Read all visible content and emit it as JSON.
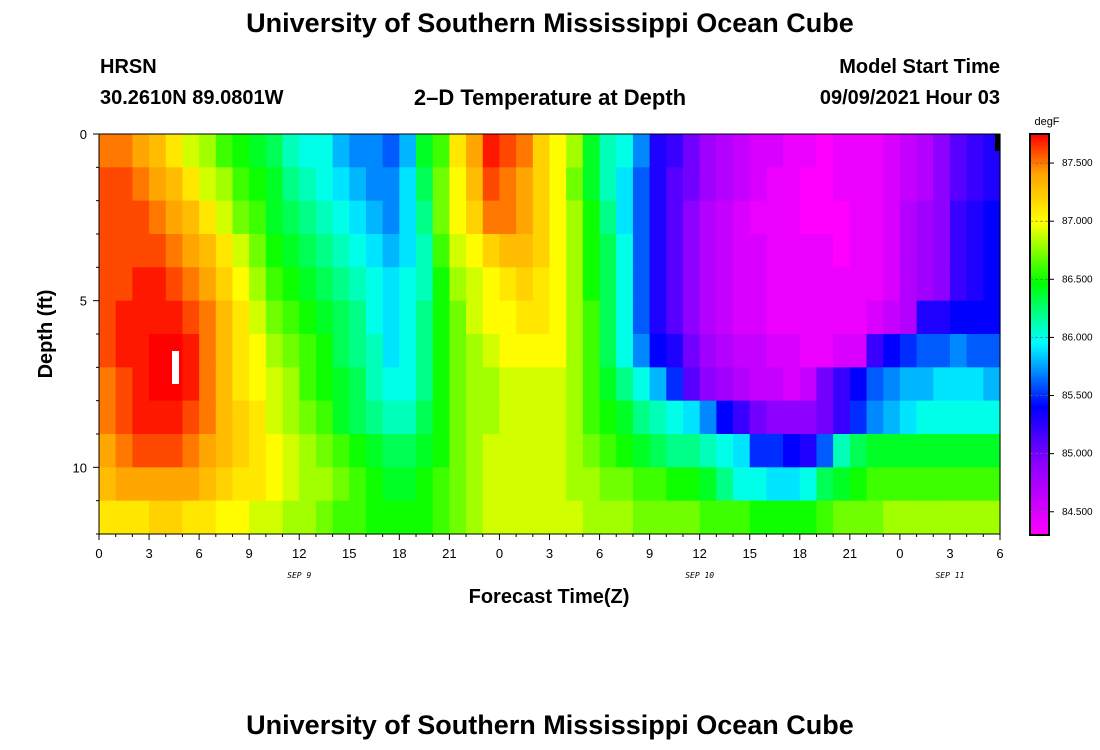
{
  "page": {
    "title_top": "University of Southern Mississippi Ocean Cube",
    "title_bottom": "University of Southern Mississippi Ocean Cube",
    "station": "HRSN",
    "location": "30.2610N  89.0801W",
    "plot_title": "2–D Temperature at Depth",
    "model_start_label": "Model Start Time",
    "model_start_value": "09/09/2021 Hour 03"
  },
  "chart_data": {
    "type": "heatmap",
    "title": "2–D Temperature at Depth",
    "xlabel": "Forecast Time(Z)",
    "ylabel": "Depth (ft)",
    "x_hours": [
      0,
      54
    ],
    "y_depth_ft": [
      0,
      12
    ],
    "x_tick_labels": [
      "0",
      "3",
      "6",
      "9",
      "12",
      "15",
      "18",
      "21",
      "0",
      "3",
      "6",
      "9",
      "12",
      "15",
      "18",
      "21",
      "0",
      "3",
      "6"
    ],
    "y_tick_labels": [
      "0",
      "5",
      "10"
    ],
    "date_labels": [
      {
        "label": "SEP 9",
        "hour": 12
      },
      {
        "label": "SEP 10",
        "hour": 36
      },
      {
        "label": "SEP 11",
        "hour": 51
      }
    ],
    "colorbar": {
      "unit": "degF",
      "range": [
        84.3,
        87.75
      ],
      "tick_labels": [
        "84.500",
        "85.000",
        "85.500",
        "86.000",
        "86.500",
        "87.000",
        "87.500"
      ],
      "tick_values": [
        84.5,
        85.0,
        85.5,
        86.0,
        86.5,
        87.0,
        87.5
      ]
    },
    "hours": [
      0,
      1,
      2,
      3,
      4,
      5,
      6,
      7,
      8,
      9,
      10,
      11,
      12,
      13,
      14,
      15,
      16,
      17,
      18,
      19,
      20,
      21,
      22,
      23,
      24,
      25,
      26,
      27,
      28,
      29,
      30,
      31,
      32,
      33,
      34,
      35,
      36,
      37,
      38,
      39,
      40,
      41,
      42,
      43,
      44,
      45,
      46,
      47,
      48,
      49,
      50,
      51,
      52,
      53
    ],
    "depths_ft": [
      0.5,
      1.5,
      2.5,
      3.5,
      4.5,
      5.5,
      6.5,
      7.5,
      8.5,
      9.5,
      10.5,
      11.5
    ],
    "model_start_hour": 3,
    "temperature_degF": [
      [
        87.5,
        87.5,
        87.4,
        87.3,
        87.1,
        86.9,
        86.8,
        86.6,
        86.5,
        86.4,
        86.3,
        86.1,
        86.0,
        86.0,
        85.8,
        85.7,
        85.7,
        85.6,
        85.8,
        86.4,
        86.6,
        87.1,
        87.4,
        87.7,
        87.6,
        87.5,
        87.2,
        87.0,
        86.8,
        86.4,
        86.1,
        86.0,
        85.7,
        85.3,
        85.2,
        85.0,
        84.8,
        84.7,
        84.6,
        84.5,
        84.5,
        84.4,
        84.4,
        84.3,
        84.4,
        84.4,
        84.4,
        84.5,
        84.6,
        84.7,
        84.9,
        85.1,
        85.2,
        85.3
      ],
      [
        87.6,
        87.6,
        87.5,
        87.4,
        87.3,
        87.1,
        86.9,
        86.8,
        86.6,
        86.5,
        86.4,
        86.2,
        86.1,
        86.0,
        85.9,
        85.8,
        85.7,
        85.7,
        85.9,
        86.3,
        86.7,
        87.0,
        87.3,
        87.6,
        87.5,
        87.4,
        87.2,
        87.0,
        86.7,
        86.4,
        86.1,
        85.9,
        85.6,
        85.3,
        85.1,
        85.0,
        84.8,
        84.7,
        84.6,
        84.5,
        84.4,
        84.4,
        84.3,
        84.3,
        84.4,
        84.4,
        84.4,
        84.5,
        84.6,
        84.7,
        84.9,
        85.1,
        85.2,
        85.3
      ],
      [
        87.6,
        87.6,
        87.6,
        87.5,
        87.4,
        87.3,
        87.1,
        86.9,
        86.7,
        86.6,
        86.4,
        86.3,
        86.2,
        86.1,
        86.0,
        85.9,
        85.8,
        85.7,
        85.9,
        86.2,
        86.7,
        87.0,
        87.2,
        87.5,
        87.5,
        87.4,
        87.2,
        87.0,
        86.8,
        86.5,
        86.2,
        85.9,
        85.6,
        85.3,
        85.1,
        84.9,
        84.7,
        84.6,
        84.5,
        84.4,
        84.4,
        84.4,
        84.3,
        84.3,
        84.3,
        84.4,
        84.4,
        84.5,
        84.7,
        84.8,
        84.9,
        85.2,
        85.3,
        85.4
      ],
      [
        87.6,
        87.6,
        87.6,
        87.6,
        87.5,
        87.4,
        87.3,
        87.1,
        86.9,
        86.7,
        86.5,
        86.4,
        86.3,
        86.2,
        86.1,
        86.0,
        85.9,
        85.8,
        85.9,
        86.1,
        86.6,
        86.9,
        87.0,
        87.2,
        87.3,
        87.3,
        87.2,
        87.0,
        86.8,
        86.5,
        86.3,
        86.0,
        85.6,
        85.3,
        85.1,
        84.9,
        84.7,
        84.6,
        84.5,
        84.5,
        84.4,
        84.4,
        84.4,
        84.4,
        84.3,
        84.4,
        84.4,
        84.5,
        84.7,
        84.8,
        84.9,
        85.2,
        85.3,
        85.4
      ],
      [
        87.6,
        87.6,
        87.7,
        87.7,
        87.6,
        87.5,
        87.4,
        87.2,
        87.0,
        86.8,
        86.6,
        86.5,
        86.4,
        86.3,
        86.2,
        86.1,
        86.0,
        85.9,
        86.0,
        86.1,
        86.5,
        86.8,
        86.9,
        87.0,
        87.1,
        87.2,
        87.1,
        87.0,
        86.8,
        86.5,
        86.3,
        86.0,
        85.6,
        85.3,
        85.1,
        84.9,
        84.7,
        84.6,
        84.5,
        84.5,
        84.4,
        84.4,
        84.4,
        84.4,
        84.4,
        84.4,
        84.4,
        84.5,
        84.7,
        84.8,
        84.9,
        85.2,
        85.3,
        85.4
      ],
      [
        87.6,
        87.7,
        87.7,
        87.7,
        87.7,
        87.6,
        87.5,
        87.3,
        87.1,
        86.9,
        86.7,
        86.6,
        86.5,
        86.4,
        86.3,
        86.2,
        86.0,
        85.9,
        86.0,
        86.2,
        86.5,
        86.7,
        86.9,
        87.0,
        87.0,
        87.1,
        87.1,
        87.0,
        86.8,
        86.6,
        86.3,
        86.0,
        85.6,
        85.3,
        85.1,
        84.9,
        84.7,
        84.6,
        84.5,
        84.5,
        84.4,
        84.4,
        84.4,
        84.4,
        84.4,
        84.4,
        84.5,
        84.6,
        84.7,
        85.3,
        85.3,
        85.4,
        85.4,
        85.4
      ],
      [
        87.6,
        87.7,
        87.7,
        87.8,
        87.8,
        87.7,
        87.5,
        87.3,
        87.1,
        87.0,
        86.8,
        86.7,
        86.6,
        86.5,
        86.3,
        86.2,
        86.1,
        85.9,
        86.0,
        86.2,
        86.5,
        86.7,
        86.8,
        86.9,
        87.0,
        87.0,
        87.0,
        87.0,
        86.8,
        86.6,
        86.3,
        86.0,
        85.7,
        85.4,
        85.3,
        85.0,
        84.8,
        84.7,
        84.6,
        84.6,
        84.5,
        84.5,
        84.4,
        84.4,
        84.5,
        84.5,
        85.2,
        85.4,
        85.5,
        85.6,
        85.6,
        85.7,
        85.6,
        85.6
      ],
      [
        87.5,
        87.6,
        87.7,
        87.8,
        87.8,
        87.7,
        87.5,
        87.3,
        87.1,
        87.0,
        86.9,
        86.8,
        86.6,
        86.5,
        86.4,
        86.3,
        86.1,
        86.0,
        86.0,
        86.2,
        86.5,
        86.7,
        86.8,
        86.8,
        86.9,
        86.9,
        86.9,
        86.9,
        86.8,
        86.6,
        86.4,
        86.2,
        86.0,
        85.8,
        85.5,
        85.1,
        84.9,
        84.8,
        84.7,
        84.6,
        84.6,
        84.5,
        84.6,
        85.0,
        85.2,
        85.4,
        85.6,
        85.7,
        85.8,
        85.8,
        85.9,
        85.9,
        85.9,
        85.8
      ],
      [
        87.5,
        87.6,
        87.7,
        87.7,
        87.7,
        87.6,
        87.5,
        87.3,
        87.2,
        87.1,
        86.9,
        86.8,
        86.7,
        86.6,
        86.4,
        86.3,
        86.2,
        86.1,
        86.1,
        86.3,
        86.5,
        86.7,
        86.8,
        86.8,
        86.9,
        86.9,
        86.9,
        86.9,
        86.8,
        86.6,
        86.5,
        86.4,
        86.2,
        86.1,
        86.0,
        85.9,
        85.7,
        85.4,
        85.2,
        85.0,
        84.9,
        84.9,
        84.9,
        85.0,
        85.2,
        85.5,
        85.7,
        85.8,
        85.9,
        86.0,
        86.0,
        86.0,
        86.0,
        86.0
      ],
      [
        87.4,
        87.5,
        87.6,
        87.6,
        87.6,
        87.5,
        87.4,
        87.3,
        87.2,
        87.1,
        87.0,
        86.9,
        86.8,
        86.7,
        86.6,
        86.5,
        86.4,
        86.3,
        86.3,
        86.4,
        86.5,
        86.7,
        86.8,
        86.9,
        86.9,
        86.9,
        86.9,
        86.9,
        86.8,
        86.7,
        86.6,
        86.5,
        86.4,
        86.3,
        86.2,
        86.2,
        86.1,
        86.0,
        85.9,
        85.5,
        85.5,
        85.4,
        85.3,
        85.6,
        86.1,
        86.3,
        86.4,
        86.4,
        86.4,
        86.4,
        86.4,
        86.4,
        86.4,
        86.4
      ],
      [
        87.3,
        87.4,
        87.4,
        87.4,
        87.4,
        87.4,
        87.3,
        87.2,
        87.1,
        87.1,
        87.0,
        86.9,
        86.8,
        86.8,
        86.7,
        86.6,
        86.5,
        86.4,
        86.4,
        86.5,
        86.6,
        86.7,
        86.8,
        86.9,
        86.9,
        86.9,
        86.9,
        86.9,
        86.8,
        86.8,
        86.7,
        86.7,
        86.6,
        86.6,
        86.5,
        86.5,
        86.4,
        86.2,
        86.0,
        86.0,
        85.9,
        85.9,
        86.0,
        86.3,
        86.4,
        86.5,
        86.6,
        86.6,
        86.6,
        86.6,
        86.6,
        86.6,
        86.6,
        86.6
      ],
      [
        87.1,
        87.1,
        87.1,
        87.2,
        87.2,
        87.1,
        87.1,
        87.0,
        87.0,
        86.9,
        86.9,
        86.8,
        86.8,
        86.7,
        86.6,
        86.6,
        86.5,
        86.5,
        86.5,
        86.5,
        86.6,
        86.7,
        86.8,
        86.9,
        86.9,
        86.9,
        86.9,
        86.9,
        86.9,
        86.8,
        86.8,
        86.8,
        86.7,
        86.7,
        86.7,
        86.7,
        86.6,
        86.6,
        86.6,
        86.5,
        86.5,
        86.5,
        86.5,
        86.6,
        86.7,
        86.7,
        86.7,
        86.8,
        86.8,
        86.8,
        86.8,
        86.8,
        86.8,
        86.8
      ]
    ]
  }
}
